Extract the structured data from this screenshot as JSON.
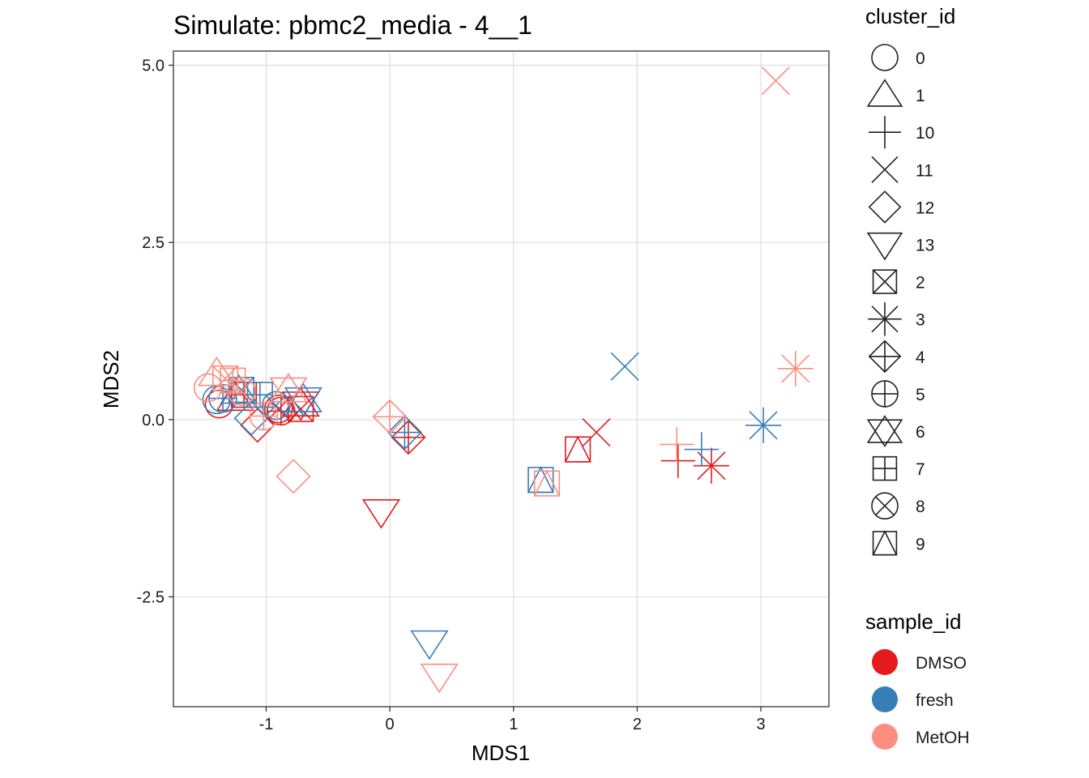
{
  "chart_data": {
    "type": "scatter",
    "title": "Simulate: pbmc2_media - 4__1",
    "xlabel": "MDS1",
    "ylabel": "MDS2",
    "xlim": [
      -1.75,
      3.55
    ],
    "ylim": [
      -4.05,
      5.2
    ],
    "x_ticks": [
      -1,
      0,
      1,
      2,
      3
    ],
    "x_tick_labels": [
      "-1",
      "0",
      "1",
      "2",
      "3"
    ],
    "y_ticks": [
      -2.5,
      0,
      2.5,
      5
    ],
    "y_tick_labels": [
      "-2.5",
      "0.0",
      "2.5",
      "5.0"
    ],
    "grid": true,
    "legend_position": "right",
    "shape_legend": {
      "title": "cluster_id",
      "entries": [
        {
          "label": "0",
          "shape": "circle"
        },
        {
          "label": "1",
          "shape": "triangle"
        },
        {
          "label": "10",
          "shape": "plus"
        },
        {
          "label": "11",
          "shape": "cross"
        },
        {
          "label": "12",
          "shape": "diamond"
        },
        {
          "label": "13",
          "shape": "triangle-down"
        },
        {
          "label": "2",
          "shape": "square-cross"
        },
        {
          "label": "3",
          "shape": "asterisk"
        },
        {
          "label": "4",
          "shape": "diamond-plus"
        },
        {
          "label": "5",
          "shape": "circle-plus"
        },
        {
          "label": "6",
          "shape": "star-of-david"
        },
        {
          "label": "7",
          "shape": "square-plus"
        },
        {
          "label": "8",
          "shape": "circle-cross"
        },
        {
          "label": "9",
          "shape": "square-triangle"
        }
      ]
    },
    "color_legend": {
      "title": "sample_id",
      "entries": [
        {
          "label": "DMSO",
          "color": "#E41A1C"
        },
        {
          "label": "fresh",
          "color": "#377EB8"
        },
        {
          "label": "MetOH",
          "color": "#FC8D80"
        }
      ]
    },
    "series": [
      {
        "name": "DMSO",
        "color": "#E41A1C",
        "points": [
          {
            "x": -1.38,
            "y": 0.22,
            "cluster": "0"
          },
          {
            "x": -1.25,
            "y": 0.3,
            "cluster": "1"
          },
          {
            "x": 2.33,
            "y": -0.58,
            "cluster": "10"
          },
          {
            "x": 1.67,
            "y": -0.18,
            "cluster": "11"
          },
          {
            "x": -1.07,
            "y": -0.08,
            "cluster": "12"
          },
          {
            "x": -0.07,
            "y": -1.3,
            "cluster": "13"
          },
          {
            "x": -0.72,
            "y": 0.15,
            "cluster": "2"
          },
          {
            "x": 2.6,
            "y": -0.65,
            "cluster": "3"
          },
          {
            "x": 0.15,
            "y": -0.25,
            "cluster": "4"
          },
          {
            "x": -0.88,
            "y": 0.12,
            "cluster": "5"
          },
          {
            "x": -0.72,
            "y": 0.22,
            "cluster": "6"
          },
          {
            "x": -1.18,
            "y": 0.35,
            "cluster": "7"
          },
          {
            "x": -0.9,
            "y": 0.15,
            "cluster": "8"
          },
          {
            "x": 1.52,
            "y": -0.42,
            "cluster": "9"
          }
        ]
      },
      {
        "name": "fresh",
        "color": "#377EB8",
        "points": [
          {
            "x": -1.4,
            "y": 0.28,
            "cluster": "0"
          },
          {
            "x": -1.22,
            "y": 0.4,
            "cluster": "1"
          },
          {
            "x": 2.52,
            "y": -0.42,
            "cluster": "10"
          },
          {
            "x": 1.9,
            "y": 0.75,
            "cluster": "11"
          },
          {
            "x": -1.12,
            "y": 0.02,
            "cluster": "12"
          },
          {
            "x": 0.32,
            "y": -3.15,
            "cluster": "13"
          },
          {
            "x": -1.2,
            "y": 0.42,
            "cluster": "2"
          },
          {
            "x": 3.02,
            "y": -0.08,
            "cluster": "3"
          },
          {
            "x": 0.12,
            "y": -0.18,
            "cluster": "4"
          },
          {
            "x": -1.35,
            "y": 0.3,
            "cluster": "5"
          },
          {
            "x": -0.7,
            "y": 0.28,
            "cluster": "6"
          },
          {
            "x": -1.05,
            "y": 0.35,
            "cluster": "7"
          },
          {
            "x": -0.92,
            "y": 0.2,
            "cluster": "8"
          },
          {
            "x": 1.22,
            "y": -0.85,
            "cluster": "9"
          }
        ]
      },
      {
        "name": "MetOH",
        "color": "#FC8D80",
        "points": [
          {
            "x": -1.47,
            "y": 0.45,
            "cluster": "0"
          },
          {
            "x": -1.4,
            "y": 0.65,
            "cluster": "1"
          },
          {
            "x": 2.32,
            "y": -0.35,
            "cluster": "10"
          },
          {
            "x": 3.12,
            "y": 4.78,
            "cluster": "11"
          },
          {
            "x": -0.78,
            "y": -0.8,
            "cluster": "12"
          },
          {
            "x": 0.4,
            "y": -3.62,
            "cluster": "13"
          },
          {
            "x": -1.33,
            "y": 0.58,
            "cluster": "2"
          },
          {
            "x": 3.28,
            "y": 0.72,
            "cluster": "3"
          },
          {
            "x": 0.0,
            "y": 0.04,
            "cluster": "4"
          },
          {
            "x": -1.02,
            "y": 0.05,
            "cluster": "5"
          },
          {
            "x": -0.82,
            "y": 0.42,
            "cluster": "6"
          },
          {
            "x": -1.27,
            "y": 0.55,
            "cluster": "7"
          },
          {
            "x": -1.2,
            "y": 0.4,
            "cluster": "8"
          },
          {
            "x": 1.27,
            "y": -0.9,
            "cluster": "9"
          }
        ]
      }
    ]
  }
}
